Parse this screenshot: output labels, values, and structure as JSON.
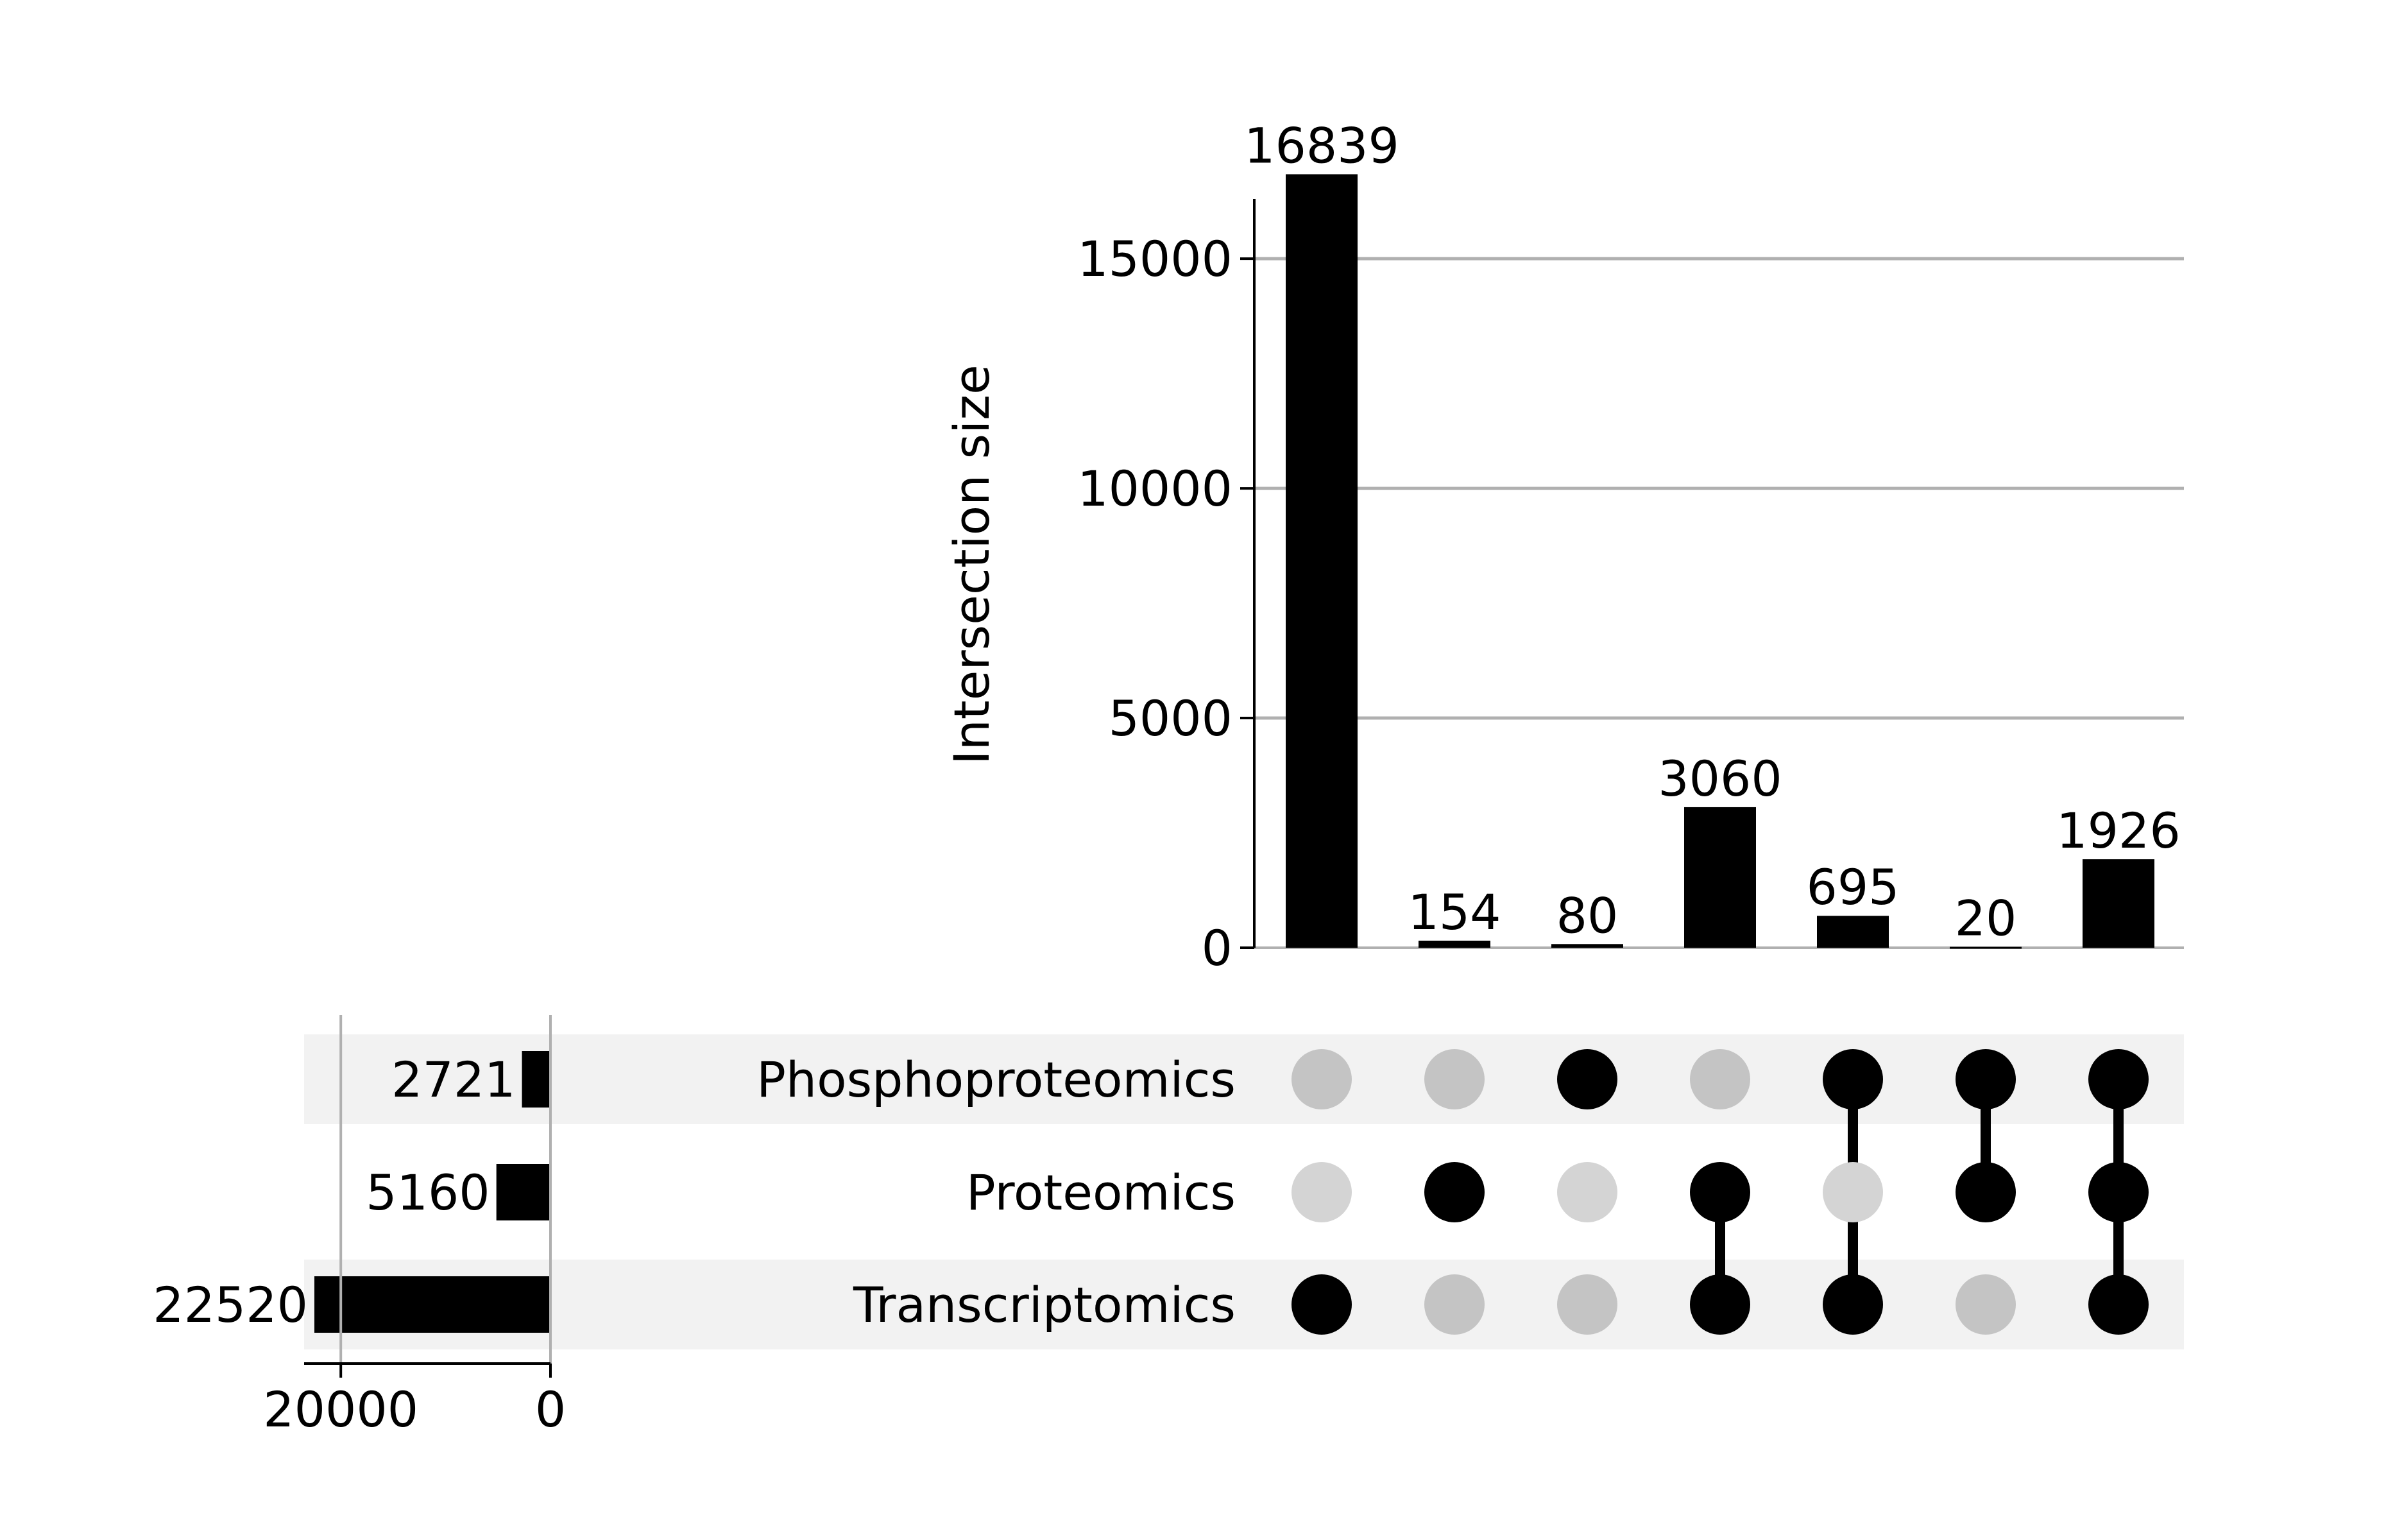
{
  "chart_data": {
    "type": "upset",
    "intersection_axis": {
      "label": "Intersection size",
      "ticks": [
        0,
        5000,
        10000,
        15000
      ],
      "tick_labels": [
        "0",
        "5000",
        "10000",
        "15000"
      ],
      "ylim": [
        0,
        17000
      ],
      "grid": true
    },
    "sets": [
      {
        "name": "Phosphoproteomics",
        "size": 2721,
        "size_label": "2721"
      },
      {
        "name": "Proteomics",
        "size": 5160,
        "size_label": "5160"
      },
      {
        "name": "Transcriptomics",
        "size": 22520,
        "size_label": "22520"
      }
    ],
    "set_size_axis": {
      "ticks": [
        20000,
        0
      ],
      "tick_labels": [
        "20000",
        "0"
      ],
      "xlim": [
        23500,
        0
      ]
    },
    "intersections": [
      {
        "members": [
          "Transcriptomics"
        ],
        "value": 16839,
        "label": "16839"
      },
      {
        "members": [
          "Proteomics"
        ],
        "value": 154,
        "label": "154"
      },
      {
        "members": [
          "Phosphoproteomics"
        ],
        "value": 80,
        "label": "80"
      },
      {
        "members": [
          "Proteomics",
          "Transcriptomics"
        ],
        "value": 3060,
        "label": "3060"
      },
      {
        "members": [
          "Phosphoproteomics",
          "Transcriptomics"
        ],
        "value": 695,
        "label": "695"
      },
      {
        "members": [
          "Phosphoproteomics",
          "Proteomics"
        ],
        "value": 20,
        "label": "20"
      },
      {
        "members": [
          "Phosphoproteomics",
          "Proteomics",
          "Transcriptomics"
        ],
        "value": 1926,
        "label": "1926"
      }
    ],
    "colors": {
      "bar": "#000000",
      "active_dot": "#000000",
      "inactive_dot_shaded_row": "#c4c4c4",
      "inactive_dot_plain_row": "#d4d4d4",
      "row_shade": "#f2f2f2",
      "grid": "#b0b0b0"
    }
  }
}
